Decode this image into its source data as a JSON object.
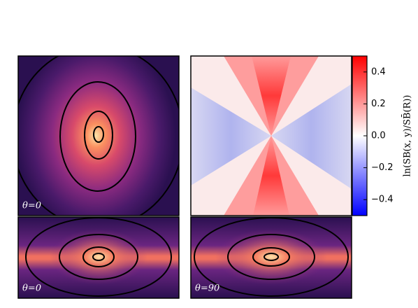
{
  "chart_data": {
    "type": "image-grid",
    "panels": [
      {
        "label": "θ=0"
      },
      {
        "label": "θ=0"
      },
      {
        "label": "θ=90"
      }
    ],
    "colorbar": {
      "label": "ln(SB(x, y)/SB̄(R))",
      "ylim": [
        -0.5,
        0.5
      ],
      "yticks": [
        {
          "value": -0.4,
          "label": "−0.4"
        },
        {
          "value": -0.2,
          "label": "−0.2"
        },
        {
          "value": 0.0,
          "label": "0.0"
        },
        0.2,
        0.4
      ],
      "colors": [
        "#0000ff",
        "#ffffff",
        "#ff0000"
      ]
    }
  }
}
